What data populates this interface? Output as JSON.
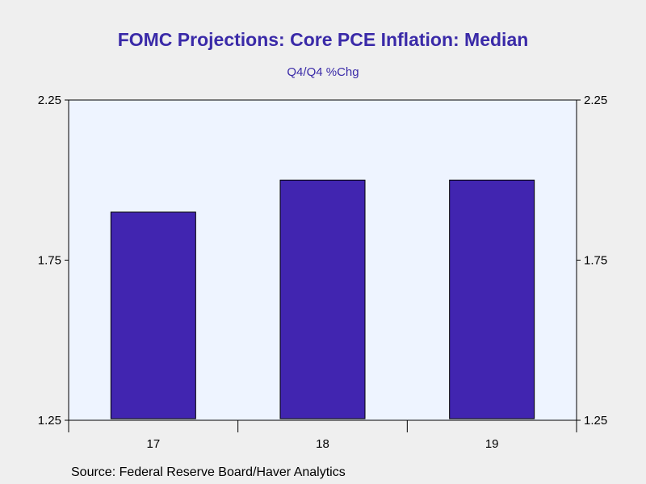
{
  "title": "FOMC Projections: Core PCE Inflation: Median",
  "subtitle": "Q4/Q4 %Chg",
  "source": "Source:  Federal Reserve Board/Haver Analytics",
  "colors": {
    "background": "#efefef",
    "plot_area": "#eef4ff",
    "bar_fill": "#4125b0",
    "title": "#3a2aa8"
  },
  "chart_data": {
    "type": "bar",
    "categories": [
      "17",
      "18",
      "19"
    ],
    "values": [
      1.9,
      2.0,
      2.0
    ],
    "title": "FOMC Projections: Core PCE Inflation: Median",
    "subtitle": "Q4/Q4 %Chg",
    "xlabel": "",
    "ylabel": "",
    "ylim": [
      1.25,
      2.25
    ],
    "yticks": [
      "1.25",
      "1.75",
      "2.25"
    ],
    "right_axis_mirrored": true,
    "grid": false,
    "legend": "none"
  }
}
